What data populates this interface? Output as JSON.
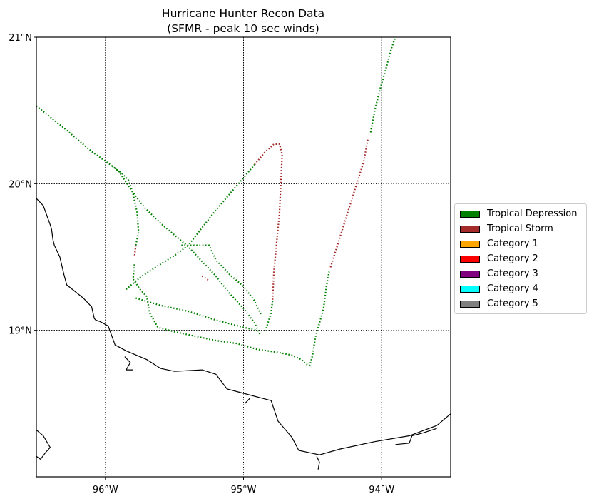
{
  "title": {
    "line1": "Hurricane Hunter Recon Data",
    "line2": "(SFMR - peak 10 sec winds)"
  },
  "map": {
    "lon_range": [
      -96.5,
      -93.5
    ],
    "lat_range": [
      18.0,
      21.0
    ],
    "gridlines": "dotted",
    "lon_ticks": [
      {
        "value": -96,
        "label": "96°W"
      },
      {
        "value": -95,
        "label": "95°W"
      },
      {
        "value": -94,
        "label": "94°W"
      }
    ],
    "lat_ticks": [
      {
        "value": 21,
        "label": "21°N"
      },
      {
        "value": 20,
        "label": "20°N"
      },
      {
        "value": 19,
        "label": "19°N"
      }
    ],
    "coast_color": "#000000",
    "coastline": [
      [
        -96.5,
        19.9
      ],
      [
        -96.45,
        19.85
      ],
      [
        -96.4,
        19.72
      ],
      [
        -96.39,
        19.69
      ],
      [
        -96.38,
        19.62
      ],
      [
        -96.37,
        19.58
      ],
      [
        -96.33,
        19.5
      ],
      [
        -96.3,
        19.38
      ],
      [
        -96.28,
        19.31
      ],
      [
        -96.16,
        19.22
      ],
      [
        -96.1,
        19.16
      ],
      [
        -96.08,
        19.08
      ],
      [
        -96.07,
        19.07
      ],
      [
        -96.04,
        19.06
      ],
      [
        -95.98,
        19.03
      ],
      [
        -95.93,
        18.9
      ],
      [
        -95.85,
        18.86
      ],
      [
        -95.7,
        18.8
      ],
      [
        -95.6,
        18.74
      ],
      [
        -95.5,
        18.72
      ],
      [
        -95.3,
        18.73
      ],
      [
        -95.2,
        18.7
      ],
      [
        -95.12,
        18.6
      ],
      [
        -95.0,
        18.57
      ],
      [
        -94.8,
        18.52
      ],
      [
        -94.75,
        18.38
      ],
      [
        -94.65,
        18.27
      ],
      [
        -94.6,
        18.18
      ],
      [
        -94.45,
        18.15
      ],
      [
        -94.3,
        18.19
      ],
      [
        -94.05,
        18.24
      ],
      [
        -93.8,
        18.28
      ],
      [
        -93.6,
        18.35
      ],
      [
        -93.5,
        18.43
      ]
    ],
    "islands": [
      [
        [
          -96.5,
          18.32
        ],
        [
          -96.45,
          18.28
        ],
        [
          -96.4,
          18.2
        ],
        [
          -96.43,
          18.17
        ],
        [
          -96.47,
          18.12
        ],
        [
          -96.5,
          18.14
        ]
      ],
      [
        [
          -95.86,
          18.82
        ],
        [
          -95.82,
          18.78
        ],
        [
          -95.85,
          18.73
        ],
        [
          -95.8,
          18.73
        ]
      ],
      [
        [
          -94.95,
          18.54
        ],
        [
          -94.97,
          18.52
        ],
        [
          -94.99,
          18.5
        ]
      ],
      [
        [
          -94.47,
          18.14
        ],
        [
          -94.45,
          18.1
        ],
        [
          -94.46,
          18.05
        ]
      ],
      [
        [
          -93.9,
          18.22
        ],
        [
          -93.8,
          18.23
        ],
        [
          -93.78,
          18.28
        ],
        [
          -93.7,
          18.3
        ],
        [
          -93.6,
          18.33
        ]
      ]
    ]
  },
  "legend": {
    "items": [
      {
        "label": "Tropical Depression",
        "color": "#008000"
      },
      {
        "label": "Tropical Storm",
        "color": "#a52a2a"
      },
      {
        "label": "Category 1",
        "color": "#ffa500"
      },
      {
        "label": "Category 2",
        "color": "#ff0000"
      },
      {
        "label": "Category 3",
        "color": "#800080"
      },
      {
        "label": "Category 4",
        "color": "#00ffff"
      },
      {
        "label": "Category 5",
        "color": "#808080"
      }
    ]
  },
  "tracks": [
    {
      "category": "Tropical Depression",
      "color": "#008000",
      "points": [
        [
          -96.5,
          20.53
        ],
        [
          -96.3,
          20.38
        ],
        [
          -96.1,
          20.22
        ],
        [
          -95.95,
          20.12
        ],
        [
          -95.9,
          20.08
        ],
        [
          -95.8,
          19.94
        ],
        [
          -95.72,
          19.84
        ],
        [
          -95.6,
          19.73
        ],
        [
          -95.5,
          19.65
        ],
        [
          -95.4,
          19.57
        ],
        [
          -95.3,
          19.47
        ],
        [
          -95.2,
          19.37
        ],
        [
          -95.1,
          19.25
        ],
        [
          -95.0,
          19.15
        ],
        [
          -94.92,
          19.05
        ],
        [
          -94.88,
          18.97
        ]
      ]
    },
    {
      "category": "Tropical Depression",
      "color": "#008000",
      "points": [
        [
          -95.95,
          20.12
        ],
        [
          -95.88,
          20.07
        ],
        [
          -95.83,
          20.02
        ],
        [
          -95.8,
          19.93
        ],
        [
          -95.77,
          19.8
        ],
        [
          -95.76,
          19.67
        ],
        [
          -95.78,
          19.58
        ]
      ]
    },
    {
      "category": "Tropical Storm",
      "color": "#a52a2a",
      "points": [
        [
          -95.78,
          19.58
        ],
        [
          -95.79,
          19.5
        ]
      ]
    },
    {
      "category": "Tropical Depression",
      "color": "#008000",
      "points": [
        [
          -95.79,
          19.45
        ],
        [
          -95.8,
          19.35
        ],
        [
          -95.75,
          19.28
        ],
        [
          -95.7,
          19.23
        ],
        [
          -95.68,
          19.12
        ],
        [
          -95.62,
          19.02
        ],
        [
          -95.5,
          18.99
        ],
        [
          -95.35,
          18.96
        ],
        [
          -95.2,
          18.93
        ],
        [
          -95.05,
          18.91
        ],
        [
          -94.9,
          18.87
        ],
        [
          -94.75,
          18.85
        ],
        [
          -94.65,
          18.83
        ],
        [
          -94.58,
          18.8
        ],
        [
          -94.55,
          18.77
        ],
        [
          -94.52,
          18.76
        ],
        [
          -94.5,
          18.83
        ],
        [
          -94.48,
          18.95
        ],
        [
          -94.45,
          19.05
        ],
        [
          -94.42,
          19.15
        ],
        [
          -94.4,
          19.3
        ],
        [
          -94.38,
          19.4
        ]
      ]
    },
    {
      "category": "Tropical Storm",
      "color": "#a52a2a",
      "points": [
        [
          -94.37,
          19.43
        ],
        [
          -94.33,
          19.55
        ],
        [
          -94.28,
          19.7
        ],
        [
          -94.23,
          19.85
        ],
        [
          -94.18,
          20.0
        ],
        [
          -94.13,
          20.15
        ],
        [
          -94.1,
          20.3
        ]
      ]
    },
    {
      "category": "Tropical Depression",
      "color": "#008000",
      "points": [
        [
          -94.08,
          20.35
        ],
        [
          -94.05,
          20.5
        ],
        [
          -94.01,
          20.65
        ],
        [
          -93.97,
          20.78
        ],
        [
          -93.93,
          20.92
        ],
        [
          -93.9,
          21.0
        ]
      ]
    },
    {
      "category": "Tropical Depression",
      "color": "#008000",
      "points": [
        [
          -95.85,
          19.28
        ],
        [
          -95.75,
          19.36
        ],
        [
          -95.62,
          19.44
        ],
        [
          -95.5,
          19.51
        ],
        [
          -95.4,
          19.58
        ],
        [
          -95.3,
          19.7
        ],
        [
          -95.2,
          19.82
        ],
        [
          -95.1,
          19.93
        ],
        [
          -95.0,
          20.04
        ],
        [
          -94.92,
          20.13
        ]
      ]
    },
    {
      "category": "Tropical Storm",
      "color": "#a52a2a",
      "points": [
        [
          -94.92,
          20.13
        ],
        [
          -94.85,
          20.21
        ],
        [
          -94.78,
          20.27
        ],
        [
          -94.74,
          20.27
        ],
        [
          -94.72,
          20.2
        ],
        [
          -94.73,
          20.0
        ],
        [
          -94.74,
          19.8
        ],
        [
          -94.76,
          19.6
        ],
        [
          -94.78,
          19.4
        ],
        [
          -94.79,
          19.2
        ]
      ]
    },
    {
      "category": "Tropical Depression",
      "color": "#008000",
      "points": [
        [
          -94.79,
          19.2
        ],
        [
          -94.8,
          19.12
        ],
        [
          -94.82,
          19.06
        ],
        [
          -94.84,
          19.0
        ]
      ]
    },
    {
      "category": "Tropical Depression",
      "color": "#008000",
      "points": [
        [
          -95.78,
          19.22
        ],
        [
          -95.6,
          19.17
        ],
        [
          -95.4,
          19.13
        ],
        [
          -95.2,
          19.07
        ],
        [
          -95.0,
          19.02
        ],
        [
          -94.9,
          19.0
        ]
      ]
    },
    {
      "category": "Tropical Depression",
      "color": "#008000",
      "points": [
        [
          -95.45,
          19.58
        ],
        [
          -95.25,
          19.58
        ],
        [
          -95.2,
          19.48
        ],
        [
          -95.1,
          19.38
        ],
        [
          -95.0,
          19.3
        ],
        [
          -94.92,
          19.2
        ],
        [
          -94.87,
          19.1
        ]
      ]
    },
    {
      "category": "Tropical Storm",
      "color": "#a52a2a",
      "points": [
        [
          -95.3,
          19.37
        ],
        [
          -95.25,
          19.34
        ]
      ]
    }
  ]
}
